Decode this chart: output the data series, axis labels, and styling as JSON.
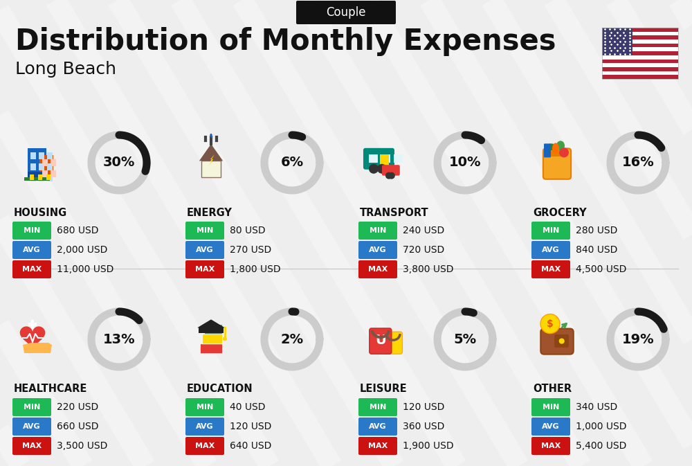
{
  "title": "Distribution of Monthly Expenses",
  "subtitle": "Long Beach",
  "badge": "Couple",
  "bg_color": "#eeeeee",
  "categories": [
    {
      "name": "HOUSING",
      "pct": 30,
      "min": "680 USD",
      "avg": "2,000 USD",
      "max": "11,000 USD",
      "row": 0,
      "col": 0
    },
    {
      "name": "ENERGY",
      "pct": 6,
      "min": "80 USD",
      "avg": "270 USD",
      "max": "1,800 USD",
      "row": 0,
      "col": 1
    },
    {
      "name": "TRANSPORT",
      "pct": 10,
      "min": "240 USD",
      "avg": "720 USD",
      "max": "3,800 USD",
      "row": 0,
      "col": 2
    },
    {
      "name": "GROCERY",
      "pct": 16,
      "min": "280 USD",
      "avg": "840 USD",
      "max": "4,500 USD",
      "row": 0,
      "col": 3
    },
    {
      "name": "HEALTHCARE",
      "pct": 13,
      "min": "220 USD",
      "avg": "660 USD",
      "max": "3,500 USD",
      "row": 1,
      "col": 0
    },
    {
      "name": "EDUCATION",
      "pct": 2,
      "min": "40 USD",
      "avg": "120 USD",
      "max": "640 USD",
      "row": 1,
      "col": 1
    },
    {
      "name": "LEISURE",
      "pct": 5,
      "min": "120 USD",
      "avg": "360 USD",
      "max": "1,900 USD",
      "row": 1,
      "col": 2
    },
    {
      "name": "OTHER",
      "pct": 19,
      "min": "340 USD",
      "avg": "1,000 USD",
      "max": "5,400 USD",
      "row": 1,
      "col": 3
    }
  ],
  "min_color": "#1db954",
  "avg_color": "#2979c8",
  "max_color": "#cc1111",
  "text_color": "#111111",
  "badge_bg": "#111111",
  "badge_text": "#ffffff",
  "donut_bg": "#cccccc",
  "donut_fg": "#1a1a1a",
  "divider_color": "#cccccc",
  "stripe_colors": [
    "#B22234",
    "#ffffff"
  ],
  "canton_color": "#3C3B6E"
}
